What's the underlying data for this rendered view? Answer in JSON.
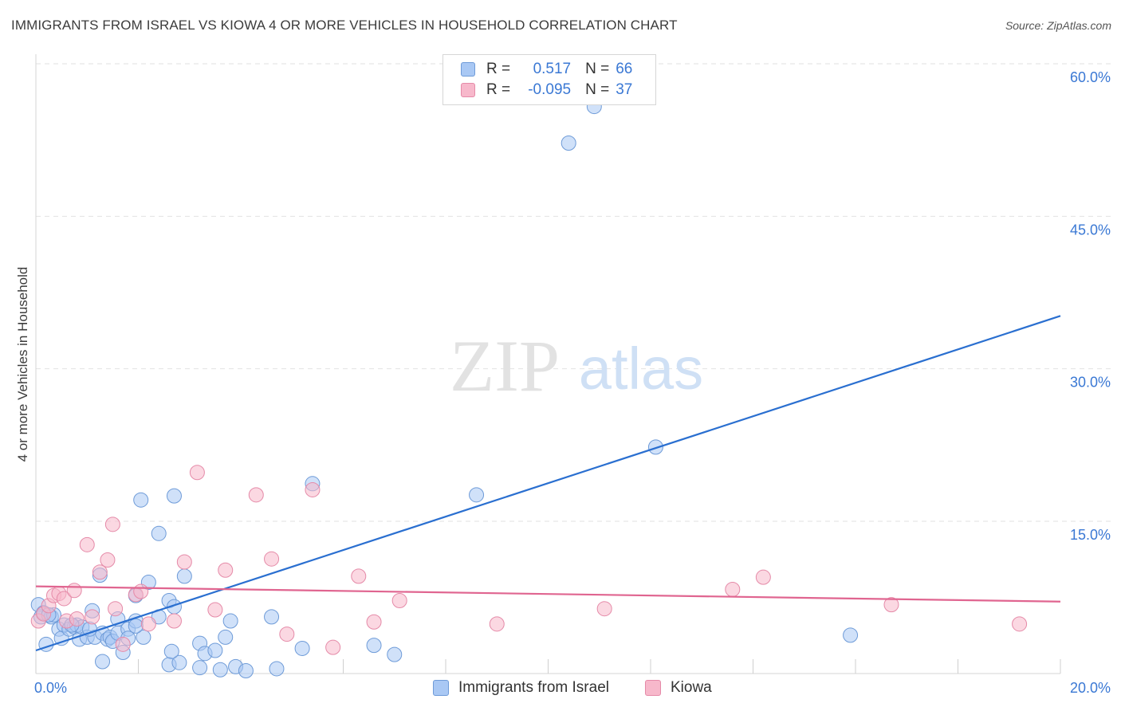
{
  "header": {
    "title": "IMMIGRANTS FROM ISRAEL VS KIOWA 4 OR MORE VEHICLES IN HOUSEHOLD CORRELATION CHART",
    "source": "Source: ZipAtlas.com"
  },
  "watermark": {
    "zip": "ZIP",
    "atlas": "atlas"
  },
  "legend": {
    "r_label": "R =",
    "n_label": "N =",
    "items": [
      {
        "r": "0.517",
        "n": "66",
        "color": "#a9c8f4"
      },
      {
        "r": "-0.095",
        "n": "37",
        "color": "#f7b8cb"
      }
    ]
  },
  "chart_data": {
    "type": "scatter",
    "title": "IMMIGRANTS FROM ISRAEL VS KIOWA 4 OR MORE VEHICLES IN HOUSEHOLD CORRELATION CHART",
    "xlabel": "",
    "ylabel": "4 or more Vehicles in Household",
    "xlim": [
      0,
      20
    ],
    "ylim": [
      0,
      63
    ],
    "x_tick_labels": [
      "0.0%",
      "20.0%"
    ],
    "y_ticks": [
      15,
      30,
      45,
      60
    ],
    "y_tick_labels": [
      "15.0%",
      "30.0%",
      "45.0%",
      "60.0%"
    ],
    "grid": true,
    "legend_position": "top-center",
    "series": [
      {
        "name": "Immigrants from Israel",
        "color": "#a9c8f4",
        "stroke": "#6e9bd8",
        "trend_color": "#2a6fd0",
        "trend": {
          "x": [
            0,
            20
          ],
          "y": [
            2.3,
            35.2
          ]
        },
        "points": [
          [
            0.05,
            6.8
          ],
          [
            0.1,
            5.6
          ],
          [
            0.15,
            6.0
          ],
          [
            0.2,
            2.9
          ],
          [
            0.3,
            5.6
          ],
          [
            0.35,
            5.8
          ],
          [
            0.45,
            4.4
          ],
          [
            0.5,
            3.5
          ],
          [
            0.55,
            4.8
          ],
          [
            0.65,
            4.4
          ],
          [
            0.75,
            4.6
          ],
          [
            0.8,
            4.8
          ],
          [
            0.85,
            3.4
          ],
          [
            0.9,
            4.6
          ],
          [
            1.0,
            3.6
          ],
          [
            1.1,
            6.2
          ],
          [
            1.15,
            3.6
          ],
          [
            1.3,
            4.0
          ],
          [
            1.4,
            3.4
          ],
          [
            1.45,
            3.6
          ],
          [
            1.5,
            3.2
          ],
          [
            1.6,
            4.0
          ],
          [
            1.6,
            5.4
          ],
          [
            1.7,
            2.1
          ],
          [
            1.8,
            4.4
          ],
          [
            1.95,
            5.2
          ],
          [
            1.95,
            7.7
          ],
          [
            2.1,
            3.6
          ],
          [
            2.2,
            9.0
          ],
          [
            2.4,
            5.6
          ],
          [
            2.6,
            7.2
          ],
          [
            2.7,
            6.6
          ],
          [
            2.9,
            9.6
          ],
          [
            3.2,
            3.0
          ],
          [
            3.3,
            2.0
          ],
          [
            3.5,
            2.3
          ],
          [
            3.7,
            3.6
          ],
          [
            3.8,
            5.2
          ],
          [
            3.9,
            0.7
          ],
          [
            4.1,
            0.3
          ],
          [
            4.6,
            5.6
          ],
          [
            4.7,
            0.5
          ],
          [
            5.2,
            2.5
          ],
          [
            5.4,
            18.7
          ],
          [
            6.6,
            2.8
          ],
          [
            7.0,
            1.9
          ],
          [
            8.6,
            17.6
          ],
          [
            10.4,
            52.2
          ],
          [
            10.9,
            55.8
          ],
          [
            12.1,
            22.3
          ],
          [
            15.9,
            3.8
          ],
          [
            1.3,
            1.2
          ],
          [
            2.6,
            0.9
          ],
          [
            2.8,
            1.1
          ],
          [
            3.2,
            0.6
          ],
          [
            3.6,
            0.4
          ],
          [
            1.05,
            4.4
          ],
          [
            1.25,
            9.7
          ],
          [
            2.05,
            17.1
          ],
          [
            2.4,
            13.8
          ],
          [
            2.7,
            17.5
          ],
          [
            1.8,
            3.5
          ],
          [
            0.7,
            4.8
          ],
          [
            2.65,
            2.2
          ],
          [
            0.25,
            5.8
          ],
          [
            1.95,
            4.7
          ]
        ]
      },
      {
        "name": "Kiowa",
        "color": "#f7b8cb",
        "stroke": "#e58aa8",
        "trend_color": "#e06590",
        "trend": {
          "x": [
            0,
            20
          ],
          "y": [
            8.6,
            7.1
          ]
        },
        "points": [
          [
            0.05,
            5.2
          ],
          [
            0.15,
            5.9
          ],
          [
            0.25,
            6.7
          ],
          [
            0.35,
            7.7
          ],
          [
            0.45,
            7.9
          ],
          [
            0.55,
            7.4
          ],
          [
            0.6,
            5.2
          ],
          [
            0.75,
            8.2
          ],
          [
            0.8,
            5.4
          ],
          [
            1.0,
            12.7
          ],
          [
            1.1,
            5.6
          ],
          [
            1.25,
            10.0
          ],
          [
            1.4,
            11.2
          ],
          [
            1.5,
            14.7
          ],
          [
            1.55,
            6.4
          ],
          [
            1.7,
            2.9
          ],
          [
            1.95,
            7.8
          ],
          [
            2.05,
            8.1
          ],
          [
            2.2,
            4.9
          ],
          [
            2.7,
            5.2
          ],
          [
            2.9,
            11.0
          ],
          [
            3.15,
            19.8
          ],
          [
            3.7,
            10.2
          ],
          [
            3.5,
            6.3
          ],
          [
            4.3,
            17.6
          ],
          [
            4.6,
            11.3
          ],
          [
            4.9,
            3.9
          ],
          [
            5.4,
            18.1
          ],
          [
            5.8,
            2.6
          ],
          [
            6.3,
            9.6
          ],
          [
            6.6,
            5.1
          ],
          [
            7.1,
            7.2
          ],
          [
            9.0,
            4.9
          ],
          [
            11.1,
            6.4
          ],
          [
            13.6,
            8.3
          ],
          [
            14.2,
            9.5
          ],
          [
            16.7,
            6.8
          ]
        ]
      }
    ],
    "extra_points": [
      [
        19.2,
        4.9
      ]
    ]
  },
  "bottom_legend": [
    {
      "label": "Immigrants from Israel",
      "color": "#a9c8f4"
    },
    {
      "label": "Kiowa",
      "color": "#f7b8cb"
    }
  ]
}
